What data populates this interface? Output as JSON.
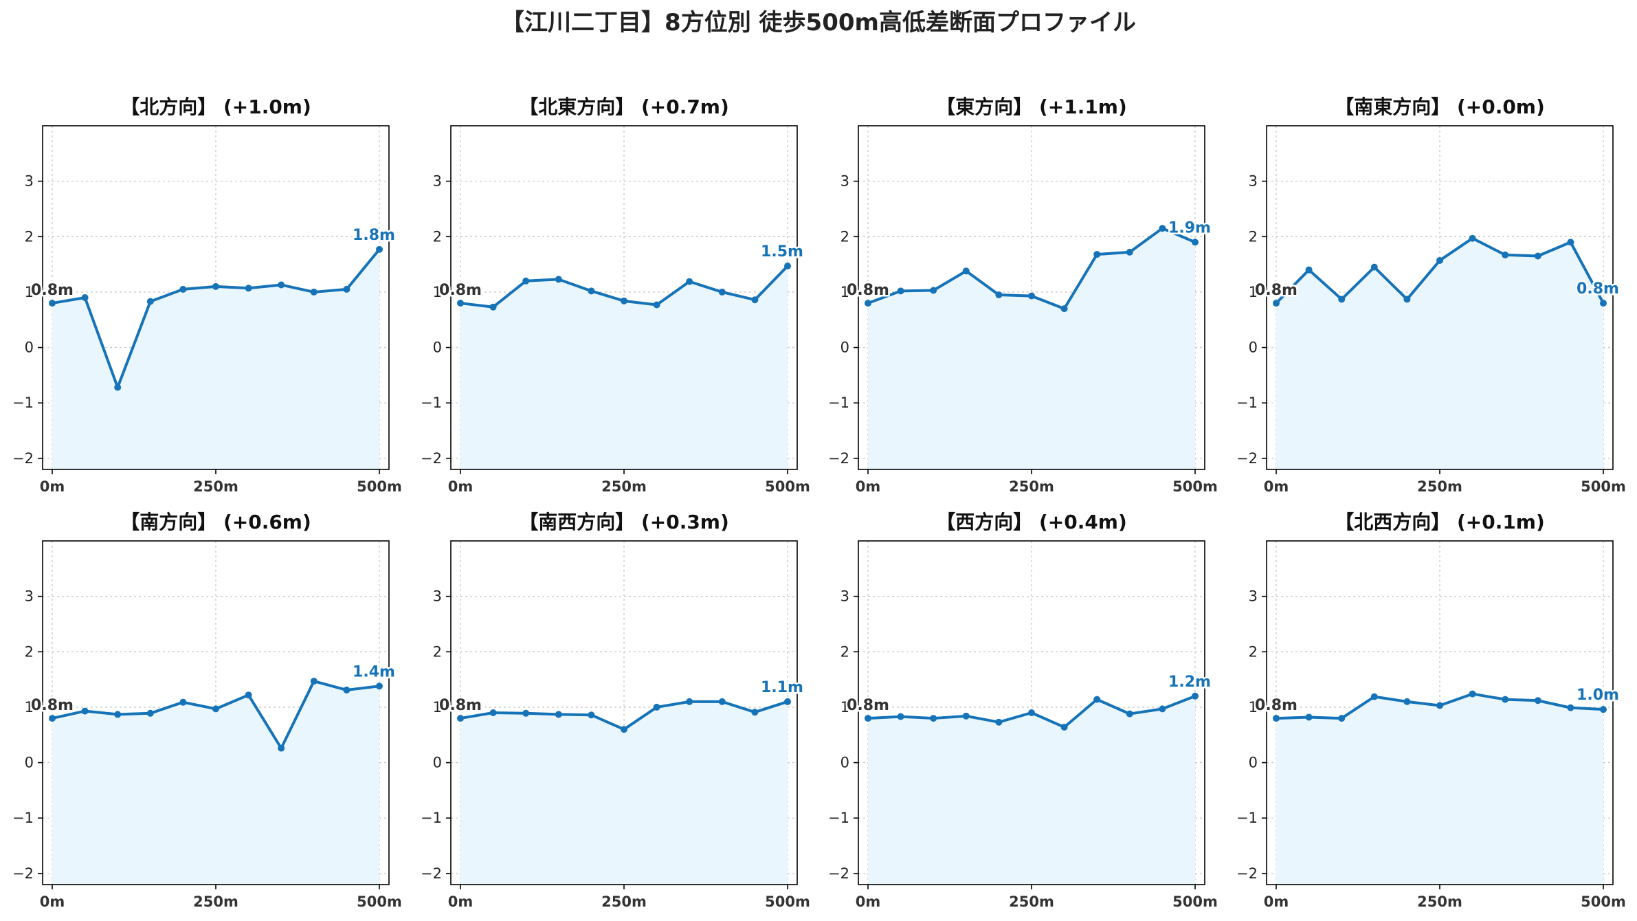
{
  "title": "【江川二丁目】8方位別 徒歩500m高低差断面プロファイル",
  "colors": {
    "line": "#1673b8",
    "area": "#e9f6fd"
  },
  "chart_data": [
    {
      "type": "line",
      "title": "【北方向】 (+1.0m)",
      "x": [
        0,
        50,
        100,
        150,
        200,
        250,
        300,
        350,
        400,
        450,
        500
      ],
      "y": [
        0.8,
        0.9,
        -0.72,
        0.83,
        1.05,
        1.1,
        1.07,
        1.13,
        1.0,
        1.05,
        1.77
      ],
      "start_label": "0.8m",
      "end_label": "1.8m",
      "xlim": [
        0,
        500
      ],
      "ylim": [
        -2.2,
        4
      ],
      "xticks": [
        "0m",
        "250m",
        "500m"
      ],
      "yticks": [
        -2,
        -1,
        0,
        1,
        2,
        3
      ],
      "grid": true
    },
    {
      "type": "line",
      "title": "【北東方向】 (+0.7m)",
      "x": [
        0,
        50,
        100,
        150,
        200,
        250,
        300,
        350,
        400,
        450,
        500
      ],
      "y": [
        0.8,
        0.73,
        1.2,
        1.23,
        1.02,
        0.84,
        0.77,
        1.19,
        1.0,
        0.86,
        1.47
      ],
      "start_label": "0.8m",
      "end_label": "1.5m",
      "xlim": [
        0,
        500
      ],
      "ylim": [
        -2.2,
        4
      ],
      "xticks": [
        "0m",
        "250m",
        "500m"
      ],
      "yticks": [
        -2,
        -1,
        0,
        1,
        2,
        3
      ],
      "grid": true
    },
    {
      "type": "line",
      "title": "【東方向】 (+1.1m)",
      "x": [
        0,
        50,
        100,
        150,
        200,
        250,
        300,
        350,
        400,
        450,
        500
      ],
      "y": [
        0.8,
        1.02,
        1.03,
        1.38,
        0.95,
        0.93,
        0.7,
        1.68,
        1.72,
        2.15,
        1.9
      ],
      "start_label": "0.8m",
      "end_label": "1.9m",
      "xlim": [
        0,
        500
      ],
      "ylim": [
        -2.2,
        4
      ],
      "xticks": [
        "0m",
        "250m",
        "500m"
      ],
      "yticks": [
        -2,
        -1,
        0,
        1,
        2,
        3
      ],
      "grid": true
    },
    {
      "type": "line",
      "title": "【南東方向】 (+0.0m)",
      "x": [
        0,
        50,
        100,
        150,
        200,
        250,
        300,
        350,
        400,
        450,
        500
      ],
      "y": [
        0.8,
        1.4,
        0.87,
        1.45,
        0.87,
        1.57,
        1.97,
        1.67,
        1.65,
        1.9,
        0.8
      ],
      "start_label": "0.8m",
      "end_label": "0.8m",
      "xlim": [
        0,
        500
      ],
      "ylim": [
        -2.2,
        4
      ],
      "xticks": [
        "0m",
        "250m",
        "500m"
      ],
      "yticks": [
        -2,
        -1,
        0,
        1,
        2,
        3
      ],
      "grid": true
    },
    {
      "type": "line",
      "title": "【南方向】 (+0.6m)",
      "x": [
        0,
        50,
        100,
        150,
        200,
        250,
        300,
        350,
        400,
        450,
        500
      ],
      "y": [
        0.8,
        0.93,
        0.87,
        0.89,
        1.09,
        0.97,
        1.22,
        0.26,
        1.47,
        1.31,
        1.38
      ],
      "start_label": "0.8m",
      "end_label": "1.4m",
      "xlim": [
        0,
        500
      ],
      "ylim": [
        -2.2,
        4
      ],
      "xticks": [
        "0m",
        "250m",
        "500m"
      ],
      "yticks": [
        -2,
        -1,
        0,
        1,
        2,
        3
      ],
      "grid": true
    },
    {
      "type": "line",
      "title": "【南西方向】 (+0.3m)",
      "x": [
        0,
        50,
        100,
        150,
        200,
        250,
        300,
        350,
        400,
        450,
        500
      ],
      "y": [
        0.8,
        0.9,
        0.89,
        0.87,
        0.86,
        0.6,
        1.0,
        1.1,
        1.1,
        0.91,
        1.1
      ],
      "start_label": "0.8m",
      "end_label": "1.1m",
      "xlim": [
        0,
        500
      ],
      "ylim": [
        -2.2,
        4
      ],
      "xticks": [
        "0m",
        "250m",
        "500m"
      ],
      "yticks": [
        -2,
        -1,
        0,
        1,
        2,
        3
      ],
      "grid": true
    },
    {
      "type": "line",
      "title": "【西方向】 (+0.4m)",
      "x": [
        0,
        50,
        100,
        150,
        200,
        250,
        300,
        350,
        400,
        450,
        500
      ],
      "y": [
        0.8,
        0.83,
        0.8,
        0.84,
        0.73,
        0.9,
        0.64,
        1.14,
        0.88,
        0.97,
        1.2
      ],
      "start_label": "0.8m",
      "end_label": "1.2m",
      "xlim": [
        0,
        500
      ],
      "ylim": [
        -2.2,
        4
      ],
      "xticks": [
        "0m",
        "250m",
        "500m"
      ],
      "yticks": [
        -2,
        -1,
        0,
        1,
        2,
        3
      ],
      "grid": true
    },
    {
      "type": "line",
      "title": "【北西方向】 (+0.1m)",
      "x": [
        0,
        50,
        100,
        150,
        200,
        250,
        300,
        350,
        400,
        450,
        500
      ],
      "y": [
        0.8,
        0.82,
        0.8,
        1.19,
        1.1,
        1.03,
        1.24,
        1.14,
        1.12,
        0.99,
        0.96
      ],
      "start_label": "0.8m",
      "end_label": "1.0m",
      "xlim": [
        0,
        500
      ],
      "ylim": [
        -2.2,
        4
      ],
      "xticks": [
        "0m",
        "250m",
        "500m"
      ],
      "yticks": [
        -2,
        -1,
        0,
        1,
        2,
        3
      ],
      "grid": true
    }
  ]
}
